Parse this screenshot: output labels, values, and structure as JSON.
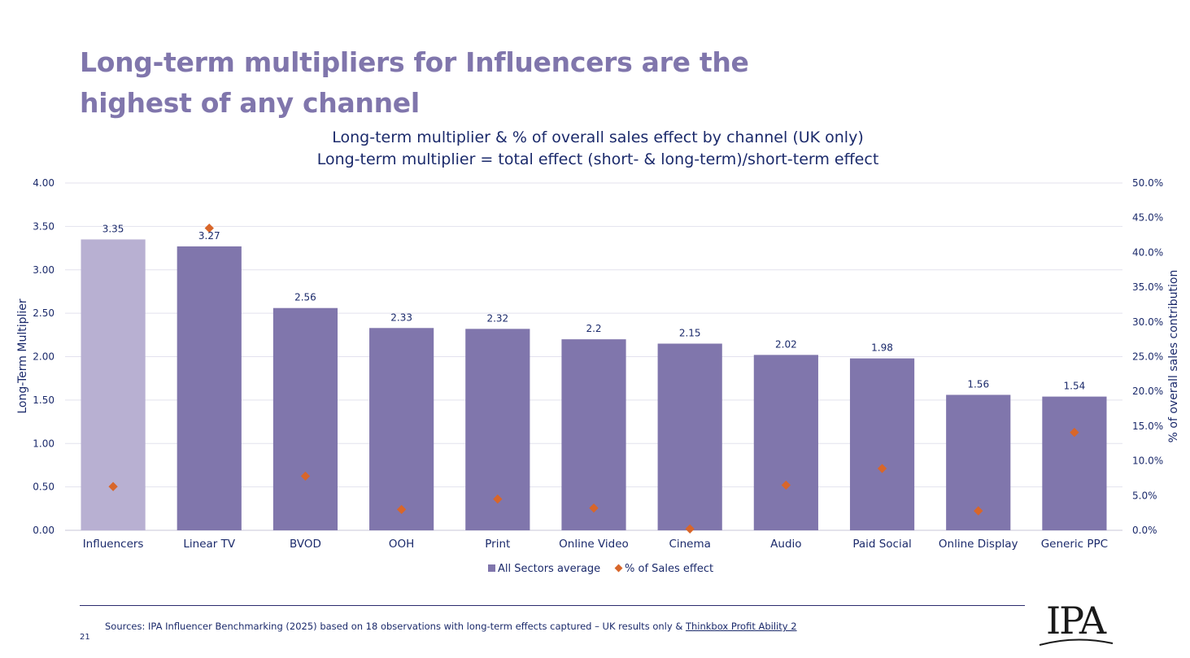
{
  "slide": {
    "title_lines": [
      "Long-term multipliers for Influencers are the",
      "highest of any channel"
    ],
    "page_number": "21",
    "sources_text": "Sources: IPA Influencer Benchmarking (2025) based on 18 observations with long-term effects captured – UK results only & ",
    "sources_link": "Thinkbox Profit Ability 2",
    "logo_text": "IPA"
  },
  "colors": {
    "title": "#8076ac",
    "navy": "#1b2a6b",
    "bar": "#8076ac",
    "bar_highlight": "#b8b0d2",
    "marker": "#d8662a",
    "grid": "#e3e2ee"
  },
  "chart_data": {
    "type": "bar",
    "title": "Long-term multiplier & % of overall sales effect by channel (UK only)",
    "subtitle": "Long-term multiplier = total effect (short- & long-term)/short-term effect",
    "ylabel": "Long-Term Multiplier",
    "y2label": "% of overall sales contribution",
    "ylim": [
      0,
      4
    ],
    "yticks": [
      "0.00",
      "0.50",
      "1.00",
      "1.50",
      "2.00",
      "2.50",
      "3.00",
      "3.50",
      "4.00"
    ],
    "y2lim": [
      0,
      50
    ],
    "y2ticks": [
      "0.0%",
      "5.0%",
      "10.0%",
      "15.0%",
      "20.0%",
      "25.0%",
      "30.0%",
      "35.0%",
      "40.0%",
      "45.0%",
      "50.0%"
    ],
    "grid": true,
    "legend_position": "bottom",
    "categories": [
      "Influencers",
      "Linear TV",
      "BVOD",
      "OOH",
      "Print",
      "Online Video",
      "Cinema",
      "Audio",
      "Paid Social",
      "Online Display",
      "Generic PPC"
    ],
    "series": [
      {
        "name": "All Sectors average",
        "kind": "bar",
        "axis": "left",
        "values": [
          3.35,
          3.27,
          2.56,
          2.33,
          2.32,
          2.2,
          2.15,
          2.02,
          1.98,
          1.56,
          1.54
        ],
        "labels": [
          "3.35",
          "3.27",
          "2.56",
          "2.33",
          "2.32",
          "2.2",
          "2.15",
          "2.02",
          "1.98",
          "1.56",
          "1.54"
        ],
        "highlight_index": 0
      },
      {
        "name": "% of Sales effect",
        "kind": "marker",
        "axis": "right",
        "values": [
          6.3,
          43.5,
          7.8,
          3.0,
          4.5,
          3.2,
          0.2,
          6.5,
          8.9,
          2.8,
          14.1
        ]
      }
    ]
  }
}
